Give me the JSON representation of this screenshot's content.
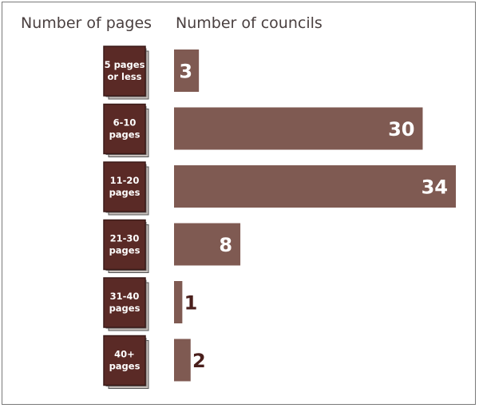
{
  "headers": {
    "pages": "Number of pages",
    "councils": "Number of councils"
  },
  "colors": {
    "bar": "#7f5a52",
    "book_front": "#5a2a26",
    "book_edge": "#3a1a18",
    "value_inside": "#ffffff",
    "value_outside": "#4a1f1c"
  },
  "chart_data": {
    "type": "bar",
    "orientation": "horizontal",
    "categories": [
      [
        "5 pages",
        "or less"
      ],
      [
        "6-10",
        "pages"
      ],
      [
        "11-20",
        "pages"
      ],
      [
        "21-30",
        "pages"
      ],
      [
        "31-40",
        "pages"
      ],
      [
        "40+",
        "pages"
      ]
    ],
    "values": [
      3,
      30,
      34,
      8,
      1,
      2
    ],
    "xlim": [
      0,
      34
    ],
    "xlabel": "Number of councils",
    "ylabel": "Number of pages",
    "grid": false,
    "legend": "none"
  }
}
